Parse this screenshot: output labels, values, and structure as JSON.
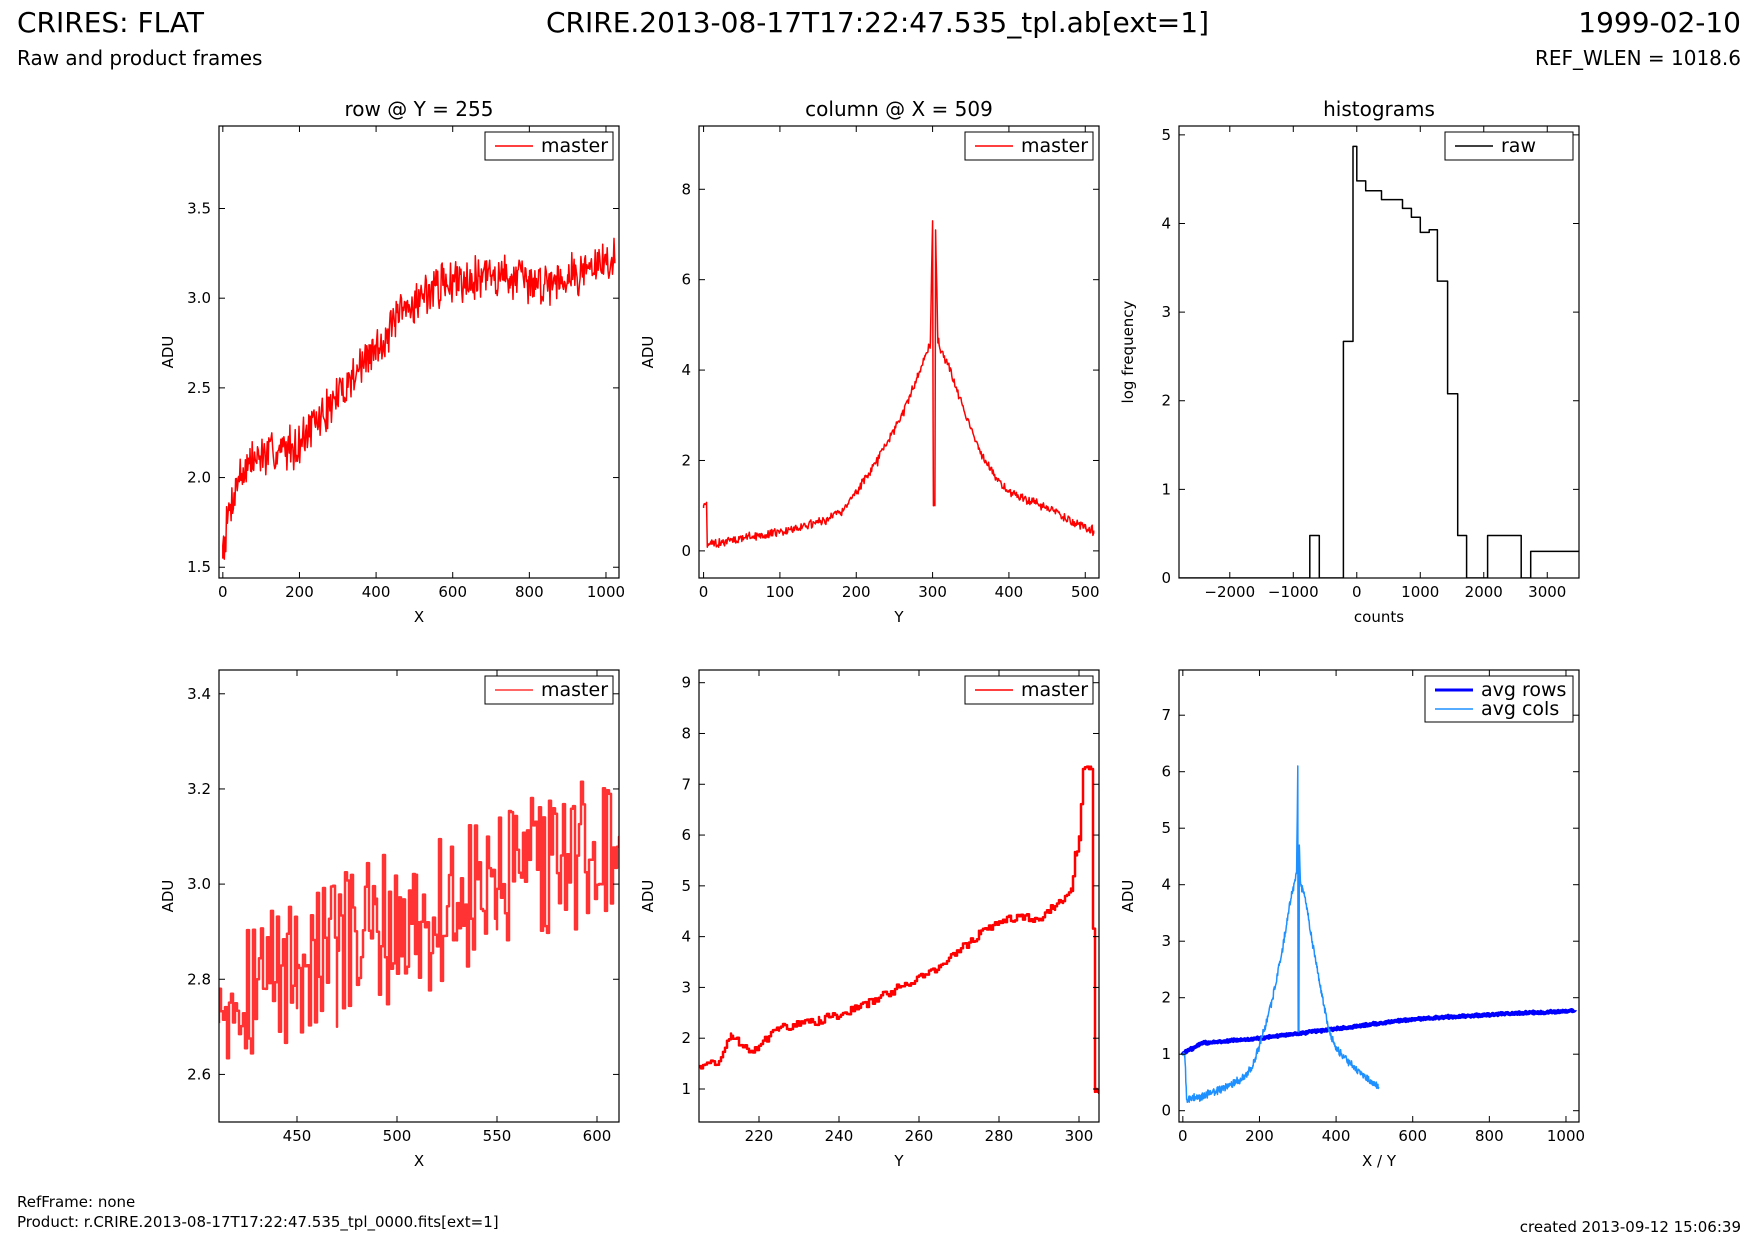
{
  "header": {
    "left_title": "CRIRES: FLAT",
    "left_subtitle": "Raw and product frames",
    "center_title": "CRIRE.2013-08-17T17:22:47.535_tpl.ab[ext=1]",
    "right_title": "1999-02-10",
    "right_subtitle": "REF_WLEN = 1018.6"
  },
  "footer": {
    "ref_frame": "RefFrame: none",
    "product": "Product: r.CRIRE.2013-08-17T17:22:47.535_tpl_0000.fits[ext=1]",
    "created": "created 2013-09-12 15:06:39"
  },
  "colors": {
    "red": "#ff0000",
    "red_light": "#ff3333",
    "black": "#000000",
    "blue": "#0000ff",
    "lightblue": "#1e90ff"
  },
  "chart_data": [
    {
      "id": "row",
      "type": "line",
      "title": "row @ Y = 255",
      "xlabel": "X",
      "ylabel": "ADU",
      "xlim": [
        -10,
        1034
      ],
      "ylim": [
        1.44,
        3.96
      ],
      "xticks": [
        0,
        200,
        400,
        600,
        800,
        1000
      ],
      "yticks": [
        1.5,
        2.0,
        2.5,
        3.0,
        3.5
      ],
      "ytick_labels": [
        "1.5",
        "2.0",
        "2.5",
        "3.0",
        "3.5"
      ],
      "legend": {
        "placement": "top-right"
      },
      "series": [
        {
          "name": "master",
          "color": "#ff0000",
          "x": [
            0,
            20,
            40,
            70,
            100,
            150,
            200,
            250,
            300,
            350,
            400,
            450,
            500,
            550,
            600,
            650,
            700,
            750,
            800,
            850,
            900,
            950,
            1000,
            1023
          ],
          "y": [
            1.62,
            1.85,
            2.0,
            2.08,
            2.12,
            2.15,
            2.2,
            2.32,
            2.45,
            2.6,
            2.72,
            2.86,
            2.98,
            3.06,
            3.1,
            3.12,
            3.13,
            3.12,
            3.08,
            3.1,
            3.13,
            3.16,
            3.2,
            3.22
          ],
          "noise": 0.12
        }
      ]
    },
    {
      "id": "column",
      "type": "line",
      "title": "column @ X = 509",
      "xlabel": "Y",
      "ylabel": "ADU",
      "xlim": [
        -6,
        518
      ],
      "ylim": [
        -0.6,
        9.4
      ],
      "xticks": [
        0,
        100,
        200,
        300,
        400,
        500
      ],
      "yticks": [
        0,
        2,
        4,
        6,
        8
      ],
      "ytick_labels": [
        "0",
        "2",
        "4",
        "6",
        "8"
      ],
      "legend": {
        "placement": "top-right"
      },
      "series": [
        {
          "name": "master",
          "color": "#ff0000",
          "x": [
            0,
            4,
            5,
            6,
            10,
            50,
            100,
            150,
            180,
            200,
            230,
            260,
            280,
            290,
            297,
            300,
            301,
            303,
            304,
            307,
            308,
            310,
            320,
            340,
            360,
            380,
            400,
            450,
            500,
            511
          ],
          "y": [
            1.0,
            1.0,
            0.1,
            0.12,
            0.15,
            0.28,
            0.42,
            0.62,
            0.85,
            1.3,
            2.05,
            3.0,
            3.85,
            4.3,
            4.55,
            7.3,
            1.0,
            1.0,
            7.1,
            4.6,
            4.7,
            4.45,
            4.15,
            3.2,
            2.25,
            1.7,
            1.3,
            0.95,
            0.5,
            0.45
          ],
          "noise": 0.1
        }
      ]
    },
    {
      "id": "histograms",
      "type": "line",
      "title": "histograms",
      "xlabel": "counts",
      "ylabel": "log frequency",
      "xlim": [
        -2800,
        3500
      ],
      "ylim": [
        0,
        5.1
      ],
      "xticks": [
        -2000,
        -1000,
        0,
        1000,
        2000,
        3000
      ],
      "xtick_labels": [
        "−2000",
        "−1000",
        "0",
        "1000",
        "2000",
        "3000"
      ],
      "yticks": [
        0,
        1,
        2,
        3,
        4,
        5
      ],
      "ytick_labels": [
        "0",
        "1",
        "2",
        "3",
        "4",
        "5"
      ],
      "legend": {
        "placement": "top-right"
      },
      "series": [
        {
          "name": "raw",
          "color": "#000000",
          "step": true,
          "x": [
            -2800,
            -740,
            -590,
            -210,
            -60,
            0,
            140,
            390,
            720,
            860,
            1000,
            1140,
            1270,
            1430,
            1590,
            1730,
            2060,
            2590,
            2740,
            3330,
            3500
          ],
          "y": [
            0,
            0.48,
            0,
            2.67,
            4.87,
            4.48,
            4.37,
            4.27,
            4.17,
            4.07,
            3.9,
            3.93,
            3.35,
            2.08,
            0.48,
            0,
            0.48,
            0,
            0.3,
            0.3,
            0.3
          ]
        }
      ]
    },
    {
      "id": "row-zoom",
      "type": "line",
      "xlabel": "X",
      "ylabel": "ADU",
      "xlim": [
        411,
        611
      ],
      "ylim": [
        2.5,
        3.45
      ],
      "xticks": [
        450,
        500,
        550,
        600
      ],
      "yticks": [
        2.6,
        2.8,
        3.0,
        3.2,
        3.4
      ],
      "ytick_labels": [
        "2.6",
        "2.8",
        "3.0",
        "3.2",
        "3.4"
      ],
      "legend": {
        "placement": "top-right"
      },
      "series": [
        {
          "name": "master",
          "color": "#ff3333",
          "step": true,
          "x": [
            411,
            430,
            450,
            470,
            490,
            510,
            530,
            550,
            570,
            590,
            611
          ],
          "y": [
            2.78,
            2.8,
            2.83,
            2.86,
            2.9,
            2.92,
            2.96,
            2.99,
            3.03,
            3.06,
            3.08
          ],
          "noise": 0.16
        }
      ]
    },
    {
      "id": "column-zoom",
      "type": "line",
      "xlabel": "Y",
      "ylabel": "ADU",
      "xlim": [
        205,
        305
      ],
      "ylim": [
        0.35,
        9.25
      ],
      "xticks": [
        220,
        240,
        260,
        280,
        300
      ],
      "yticks": [
        1,
        2,
        3,
        4,
        5,
        6,
        7,
        8,
        9
      ],
      "ytick_labels": [
        "1",
        "2",
        "3",
        "4",
        "5",
        "6",
        "7",
        "8",
        "9"
      ],
      "legend": {
        "placement": "top-right"
      },
      "series": [
        {
          "name": "master",
          "color": "#ff0000",
          "step": true,
          "x": [
            205,
            210,
            213,
            218,
            225,
            235,
            245,
            255,
            265,
            275,
            280,
            285,
            290,
            294,
            296,
            298,
            299,
            300,
            301,
            303,
            304,
            305
          ],
          "y": [
            1.45,
            1.55,
            2.05,
            1.75,
            2.2,
            2.35,
            2.6,
            3.0,
            3.4,
            4.05,
            4.3,
            4.4,
            4.35,
            4.6,
            4.7,
            4.9,
            5.6,
            5.9,
            7.3,
            7.3,
            1.0,
            1.0
          ],
          "noise": 0.08
        }
      ]
    },
    {
      "id": "averages",
      "type": "line",
      "xlabel": "X / Y",
      "ylabel": "ADU",
      "xlim": [
        -10,
        1034
      ],
      "ylim": [
        -0.2,
        7.8
      ],
      "xticks": [
        0,
        200,
        400,
        600,
        800,
        1000
      ],
      "yticks": [
        0,
        1,
        2,
        3,
        4,
        5,
        6,
        7
      ],
      "ytick_labels": [
        "0",
        "1",
        "2",
        "3",
        "4",
        "5",
        "6",
        "7"
      ],
      "legend": {
        "placement": "top-right"
      },
      "series": [
        {
          "name": "avg rows",
          "color": "#0000ff",
          "width": 4,
          "x": [
            0,
            10,
            30,
            50,
            200,
            400,
            600,
            800,
            1000,
            1023
          ],
          "y": [
            1.0,
            1.05,
            1.12,
            1.2,
            1.28,
            1.45,
            1.62,
            1.7,
            1.76,
            1.78
          ],
          "noise": 0.02
        },
        {
          "name": "avg cols",
          "color": "#1e90ff",
          "width": 1.5,
          "x": [
            0,
            5,
            10,
            50,
            100,
            150,
            180,
            200,
            230,
            260,
            280,
            290,
            297,
            300,
            301,
            303,
            304,
            307,
            310,
            320,
            340,
            360,
            380,
            400,
            450,
            500,
            511
          ],
          "y": [
            1.0,
            1.0,
            0.2,
            0.25,
            0.38,
            0.55,
            0.75,
            1.15,
            1.85,
            2.85,
            3.7,
            4.0,
            4.2,
            6.1,
            1.4,
            1.4,
            4.7,
            4.05,
            3.95,
            3.75,
            2.9,
            2.15,
            1.45,
            1.1,
            0.75,
            0.45,
            0.42
          ],
          "noise": 0.07
        }
      ]
    }
  ]
}
